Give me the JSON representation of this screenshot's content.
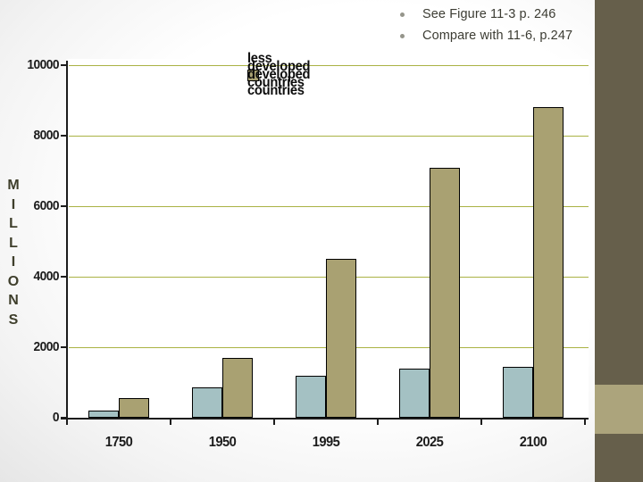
{
  "slide": {
    "bullets": [
      {
        "text": "See Figure 11-3 p. 246"
      },
      {
        "text": "Compare with 11-6, p.247"
      }
    ]
  },
  "colors": {
    "developed": "#A4C1C3",
    "less_developed": "#A9A172",
    "gridline": "#AAB244",
    "sidebar": "#665F4B",
    "sidebar_accent": "#ACA47C",
    "bullet_dot": "#95958B",
    "bullet_text": "#3C3C33"
  },
  "chart_data": {
    "type": "bar",
    "categories": [
      "1750",
      "1950",
      "1995",
      "2025",
      "2100"
    ],
    "series": [
      {
        "name": "developed countries",
        "color_key": "developed",
        "values": [
          200,
          850,
          1200,
          1400,
          1450
        ]
      },
      {
        "name": "less developed countries",
        "color_key": "less_developed",
        "values": [
          550,
          1700,
          4500,
          7100,
          8800
        ]
      }
    ],
    "title": "",
    "xlabel": "",
    "ylabel": "MILLIONS",
    "ylim": [
      0,
      10000
    ],
    "yticks": [
      0,
      2000,
      4000,
      6000,
      8000,
      10000
    ],
    "grid": true,
    "legend_position": "top-center-inside"
  }
}
